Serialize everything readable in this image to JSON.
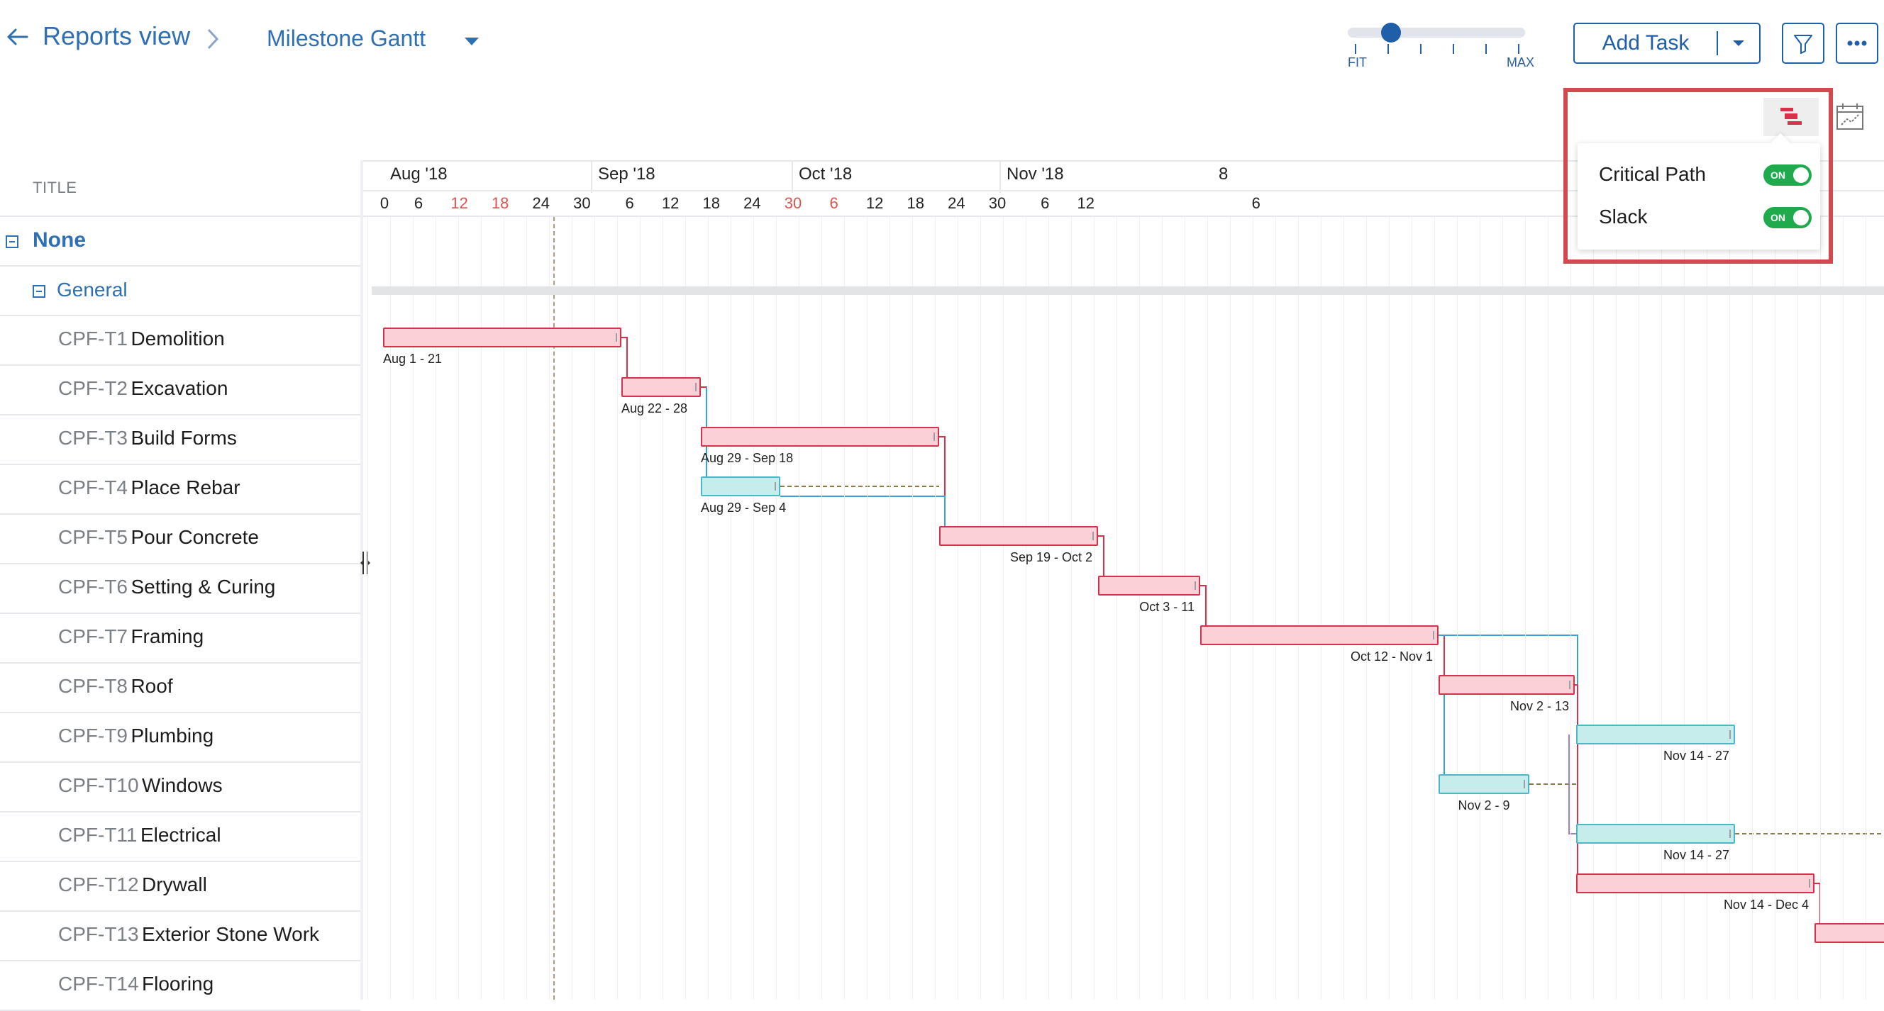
{
  "header": {
    "breadcrumb": "Reports view",
    "view_name": "Milestone Gantt",
    "zoom": {
      "min_label": "FIT",
      "max_label": "MAX",
      "level": 0.22
    },
    "add_task_label": "Add Task",
    "filter_icon": "filter-icon",
    "more_icon": "more-dots-icon"
  },
  "task_list": {
    "column_title": "TITLE",
    "group": "None",
    "subgroup": "General",
    "tasks": [
      {
        "code": "CPF-T1",
        "name": "Demolition"
      },
      {
        "code": "CPF-T2",
        "name": "Excavation"
      },
      {
        "code": "CPF-T3",
        "name": "Build Forms"
      },
      {
        "code": "CPF-T4",
        "name": "Place Rebar"
      },
      {
        "code": "CPF-T5",
        "name": "Pour Concrete"
      },
      {
        "code": "CPF-T6",
        "name": "Setting & Curing"
      },
      {
        "code": "CPF-T7",
        "name": "Framing"
      },
      {
        "code": "CPF-T8",
        "name": "Roof"
      },
      {
        "code": "CPF-T9",
        "name": "Plumbing"
      },
      {
        "code": "CPF-T10",
        "name": "Windows"
      },
      {
        "code": "CPF-T11",
        "name": "Electrical"
      },
      {
        "code": "CPF-T12",
        "name": "Drywall"
      },
      {
        "code": "CPF-T13",
        "name": "Exterior Stone Work"
      },
      {
        "code": "CPF-T14",
        "name": "Flooring"
      }
    ]
  },
  "timeline": {
    "months": [
      "Aug '18",
      "Sep '18",
      "Oct '18",
      "Nov '18",
      "8"
    ],
    "days": [
      "0",
      "6",
      "12",
      "18",
      "24",
      "30",
      "6",
      "12",
      "18",
      "24",
      "30",
      "6",
      "12",
      "18",
      "24",
      "30",
      "6",
      "12",
      "6"
    ],
    "bars": [
      {
        "label": "Aug 1 - 21",
        "critical": true
      },
      {
        "label": "Aug 22 - 28",
        "critical": true
      },
      {
        "label": "Aug 29 - Sep 18",
        "critical": true
      },
      {
        "label": "Aug 29 - Sep 4",
        "critical": false
      },
      {
        "label": "Sep 19 - Oct 2",
        "critical": true
      },
      {
        "label": "Oct 3 - 11",
        "critical": true
      },
      {
        "label": "Oct 12 - Nov 1",
        "critical": true
      },
      {
        "label": "Nov 2 - 13",
        "critical": true
      },
      {
        "label": "Nov 14 - 27",
        "critical": false
      },
      {
        "label": "Nov 2 - 9",
        "critical": false
      },
      {
        "label": "Nov 14 - 27",
        "critical": false
      },
      {
        "label": "Nov 14 - Dec 4",
        "critical": true
      },
      {
        "label": "",
        "critical": true
      }
    ]
  },
  "popover": {
    "items": [
      {
        "label": "Critical Path",
        "state": "ON"
      },
      {
        "label": "Slack",
        "state": "ON"
      }
    ]
  },
  "colors": {
    "accent": "#1f5ea8",
    "critical_fill": "#fbd0d7",
    "critical_border": "#d9314a",
    "slack_fill": "#c6ecec",
    "slack_border": "#4bb8c6",
    "toggle_on": "#1faa4d",
    "highlight": "#d24a4f"
  }
}
